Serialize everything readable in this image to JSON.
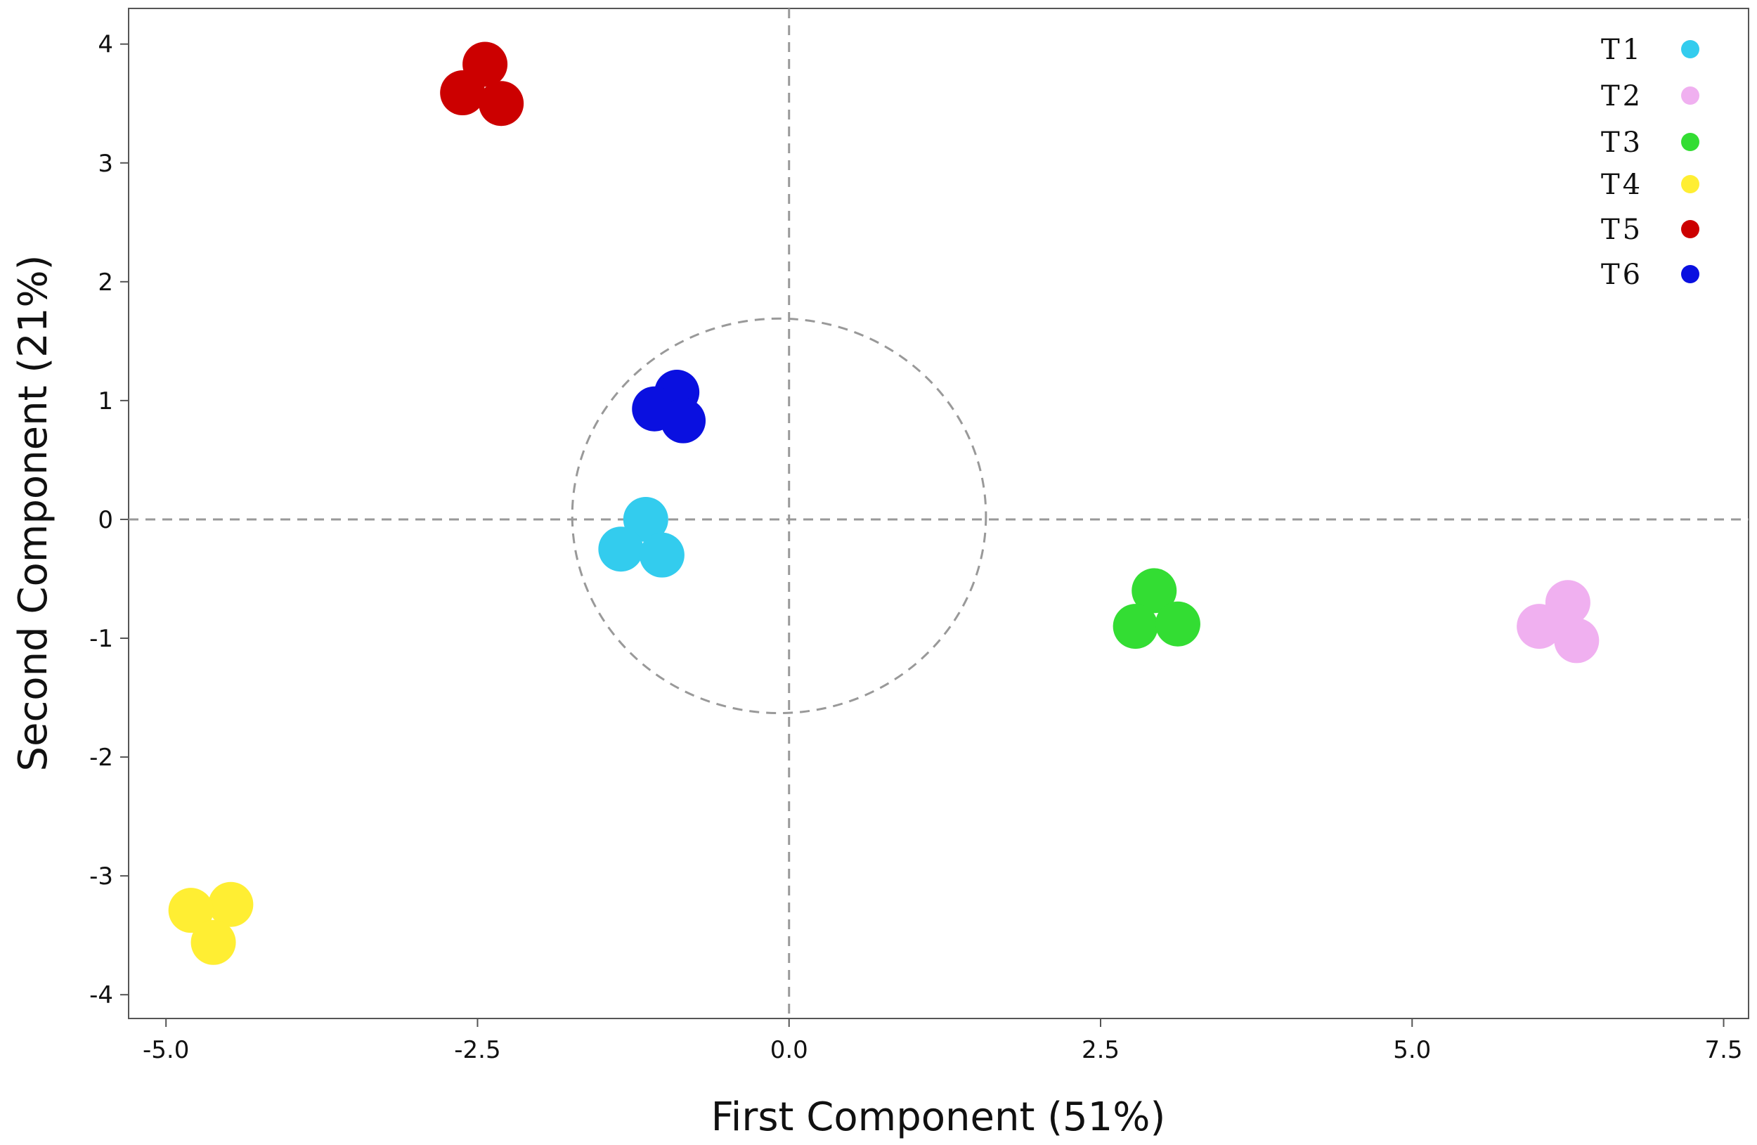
{
  "chart_data": {
    "type": "scatter",
    "title": "",
    "xlabel": "First Component (51%)",
    "ylabel": "Second Component (21%)",
    "xlim": [
      -5.3,
      7.7
    ],
    "ylim": [
      -4.2,
      4.3
    ],
    "x_ticks": [
      {
        "value": -5.0,
        "label": "-5.0"
      },
      {
        "value": -2.5,
        "label": "-2.5"
      },
      {
        "value": 0.0,
        "label": "0.0"
      },
      {
        "value": 2.5,
        "label": "2.5"
      },
      {
        "value": 5.0,
        "label": "5.0"
      },
      {
        "value": 7.5,
        "label": "7.5"
      }
    ],
    "y_ticks": [
      {
        "value": 4,
        "label": "4"
      },
      {
        "value": 3,
        "label": "3"
      },
      {
        "value": 2,
        "label": "2"
      },
      {
        "value": 1,
        "label": "1"
      },
      {
        "value": 0,
        "label": "0"
      },
      {
        "value": -1,
        "label": "-1"
      },
      {
        "value": -2,
        "label": "-2"
      },
      {
        "value": -3,
        "label": "-3"
      },
      {
        "value": -4,
        "label": "-4"
      }
    ],
    "reference_lines": {
      "x": 0,
      "y": 0,
      "style": "dashed"
    },
    "reference_circle": {
      "center": [
        -0.08,
        0.03
      ],
      "radius": 1.66,
      "style": "dashed"
    },
    "grid": false,
    "legend_position": "top-right",
    "series": [
      {
        "name": "T1",
        "color": "#33ccee",
        "points": [
          [
            -1.15,
            0.0
          ],
          [
            -1.35,
            -0.25
          ],
          [
            -1.02,
            -0.3
          ]
        ]
      },
      {
        "name": "T2",
        "color": "#f0b0f0",
        "points": [
          [
            6.25,
            -0.7
          ],
          [
            6.02,
            -0.9
          ],
          [
            6.32,
            -1.02
          ]
        ]
      },
      {
        "name": "T3",
        "color": "#33dd33",
        "points": [
          [
            2.93,
            -0.6
          ],
          [
            2.78,
            -0.9
          ],
          [
            3.12,
            -0.88
          ]
        ]
      },
      {
        "name": "T4",
        "color": "#ffee33",
        "points": [
          [
            -4.48,
            -3.24
          ],
          [
            -4.8,
            -3.29
          ],
          [
            -4.62,
            -3.56
          ]
        ]
      },
      {
        "name": "T5",
        "color": "#cc0000",
        "points": [
          [
            -2.44,
            3.83
          ],
          [
            -2.62,
            3.59
          ],
          [
            -2.31,
            3.5
          ]
        ]
      },
      {
        "name": "T6",
        "color": "#0a10e0",
        "points": [
          [
            -0.9,
            1.07
          ],
          [
            -1.08,
            0.93
          ],
          [
            -0.85,
            0.83
          ]
        ]
      }
    ]
  }
}
